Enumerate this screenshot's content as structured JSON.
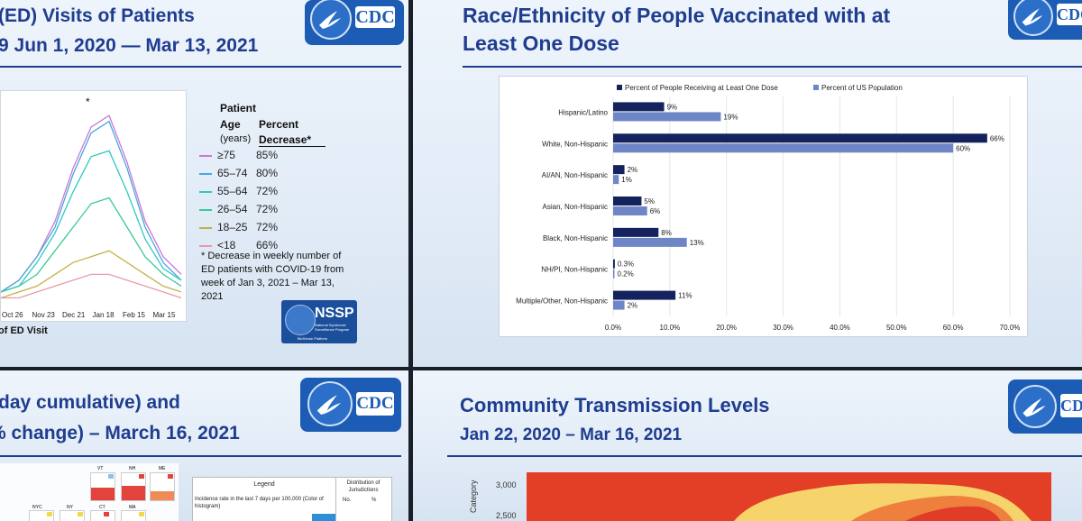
{
  "panel_ed": {
    "title_line1": "(ED) Visits of Patients",
    "title_line2": "9 Jun 1, 2020 — Mar 13, 2021",
    "legend_header": {
      "patient": "Patient",
      "age": "Age",
      "years": "(years)",
      "percent": "Percent",
      "decrease": "Decrease*"
    },
    "legend_rows": [
      {
        "label": "≥75",
        "value": "85%",
        "color": "#c979d6"
      },
      {
        "label": "65–74",
        "value": "80%",
        "color": "#4aa6e0"
      },
      {
        "label": "55–64",
        "value": "72%",
        "color": "#2ec9c0"
      },
      {
        "label": "26–54",
        "value": "72%",
        "color": "#39c99a"
      },
      {
        "label": "18–25",
        "value": "72%",
        "color": "#c4b04a"
      },
      {
        "label": "<18",
        "value": "66%",
        "color": "#e89aa9"
      }
    ],
    "footnote": "* Decrease in weekly number of ED patients with COVID-19 from week of Jan 3, 2021 – Mar 13, 2021",
    "x_ticks": [
      "Oct 26",
      "Nov 23",
      "Dec 21",
      "Jan 18",
      "Feb 15",
      "Mar 15"
    ],
    "xlabel": "of ED Visit",
    "peak_marker": "*",
    "logo_name": "NSSP",
    "logo_sub": "National Syndromic Surveillance Program",
    "logo_sub2": "BioSense Platform",
    "cdc_label": "CDC"
  },
  "panel_race": {
    "title_line1": "Race/Ethnicity of People Vaccinated with at",
    "title_line2": "Least One Dose",
    "cdc_label": "CDC"
  },
  "panel_cumulative": {
    "title_line1": "day cumulative) and",
    "title_line2": "% change) – March 16, 2021",
    "cdc_label": "CDC",
    "legend_title": "Legend",
    "legend_col_dist": "Distribution of Jurisdictions",
    "legend_no": "No.",
    "legend_pct": "%",
    "legend_row_text": "Incidence rate in the last 7 days per 100,000 (Color of histogram)",
    "state_labels": [
      "VT",
      "NH",
      "ME",
      "NYC",
      "NY",
      "CT",
      "MA"
    ]
  },
  "panel_community": {
    "title_line1": "Community Transmission Levels",
    "title_line2": "Jan 22, 2020 – Mar 16, 2021",
    "y_ticks": [
      "3,000",
      "2,500"
    ],
    "ylabel": "Category",
    "cdc_label": "CDC"
  },
  "chart_data": [
    {
      "type": "bar",
      "orientation": "horizontal",
      "categories": [
        "Hispanic/Latino",
        "White, Non-Hispanic",
        "AI/AN, Non-Hispanic",
        "Asian, Non-Hispanic",
        "Black, Non-Hispanic",
        "NH/PI, Non-Hispanic",
        "Multiple/Other, Non-Hispanic"
      ],
      "series": [
        {
          "name": "Percent of People Receiving at Least One Dose",
          "values": [
            9,
            66,
            2,
            5,
            8,
            0.3,
            11
          ],
          "labels": [
            "9%",
            "66%",
            "2%",
            "5%",
            "8%",
            "0.3%",
            "11%"
          ],
          "color": "#14235e"
        },
        {
          "name": "Percent of US Population",
          "values": [
            19,
            60,
            1,
            6,
            13,
            0.2,
            2
          ],
          "labels": [
            "19%",
            "60%",
            "1%",
            "6%",
            "13%",
            "0.2%",
            "2%"
          ],
          "color": "#6f86c6"
        }
      ],
      "xlim": [
        0,
        70
      ],
      "x_ticks": [
        "0.0%",
        "10.0%",
        "20.0%",
        "30.0%",
        "40.0%",
        "50.0%",
        "60.0%",
        "70.0%"
      ],
      "legend": "top",
      "grid": true
    },
    {
      "type": "line",
      "series": [
        {
          "name": "≥75",
          "color": "#c979d6",
          "values": [
            2,
            4,
            8,
            14,
            23,
            30,
            32,
            24,
            14,
            8,
            5
          ]
        },
        {
          "name": "65–74",
          "color": "#4aa6e0",
          "values": [
            2,
            4,
            8,
            13,
            22,
            29,
            31,
            23,
            13,
            7,
            4
          ]
        },
        {
          "name": "55–64",
          "color": "#2ec9c0",
          "values": [
            2,
            3,
            7,
            12,
            19,
            25,
            26,
            19,
            11,
            6,
            4
          ]
        },
        {
          "name": "26–54",
          "color": "#39c99a",
          "values": [
            2,
            3,
            5,
            9,
            13,
            17,
            18,
            13,
            8,
            5,
            3
          ]
        },
        {
          "name": "18–25",
          "color": "#c4b04a",
          "values": [
            1,
            2,
            3,
            5,
            7,
            8,
            9,
            7,
            5,
            3,
            2
          ]
        },
        {
          "name": "<18",
          "color": "#e89aa9",
          "values": [
            1,
            1,
            2,
            3,
            4,
            5,
            5,
            4,
            3,
            2,
            1
          ]
        }
      ]
    }
  ]
}
